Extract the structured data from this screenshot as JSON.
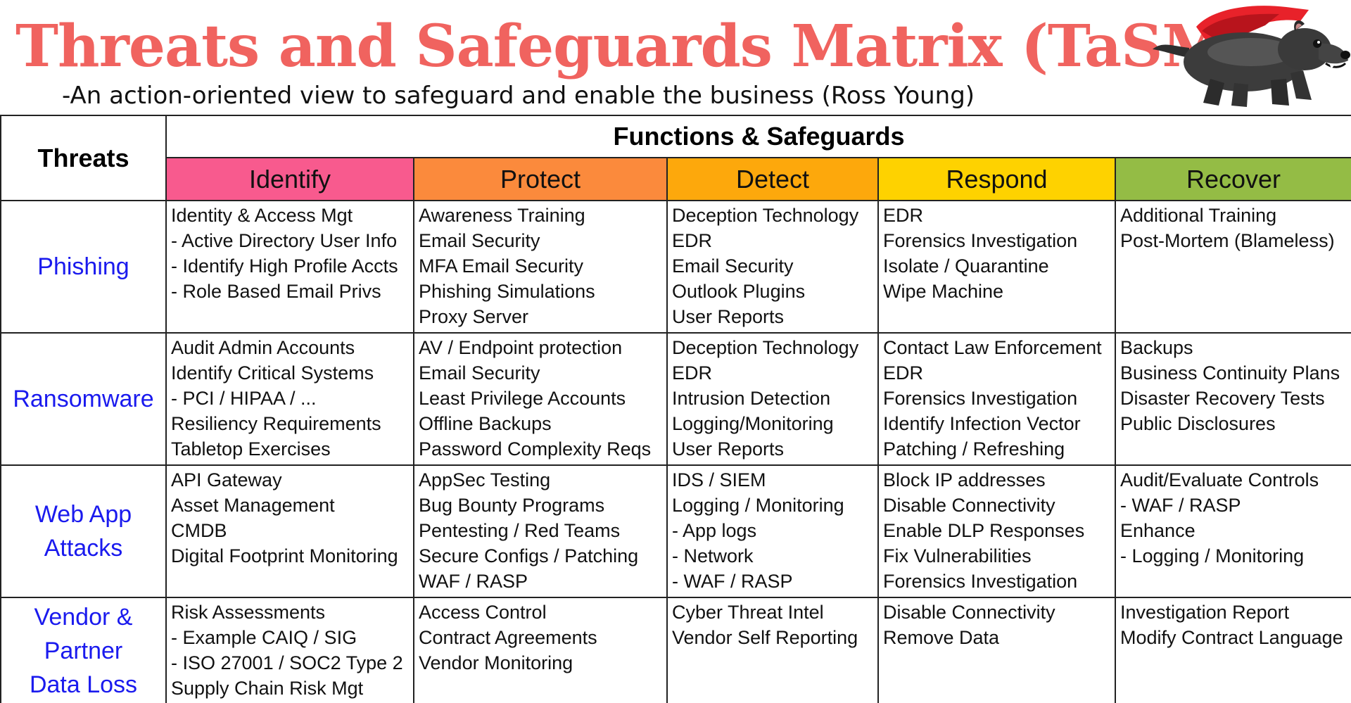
{
  "header": {
    "title": "Threats and Safeguards Matrix (TaSM)",
    "subtitle": "-An action-oriented view to safeguard and enable the business (Ross Young)"
  },
  "table": {
    "threats_header": "Threats",
    "functions_header": "Functions & Safeguards",
    "functions": [
      {
        "label": "Identify",
        "color": "#f85a8e"
      },
      {
        "label": "Protect",
        "color": "#fb8a3c"
      },
      {
        "label": "Detect",
        "color": "#fda80c"
      },
      {
        "label": "Respond",
        "color": "#fed200"
      },
      {
        "label": "Recover",
        "color": "#94bc45"
      }
    ],
    "rows": [
      {
        "threat": [
          "Phishing"
        ],
        "cells": [
          [
            "Identity & Access Mgt",
            "- Active Directory User Info",
            "- Identify High Profile Accts",
            "- Role Based Email Privs"
          ],
          [
            "Awareness Training",
            "Email Security",
            "MFA Email Security",
            "Phishing Simulations",
            "Proxy Server"
          ],
          [
            "Deception Technology",
            "EDR",
            "Email Security",
            "Outlook Plugins",
            "User Reports"
          ],
          [
            "EDR",
            "Forensics Investigation",
            "Isolate / Quarantine",
            "Wipe Machine"
          ],
          [
            "Additional Training",
            "Post-Mortem (Blameless)"
          ]
        ]
      },
      {
        "threat": [
          "Ransomware"
        ],
        "cells": [
          [
            "Audit Admin Accounts",
            "Identify Critical Systems",
            "- PCI / HIPAA / ...",
            "Resiliency Requirements",
            "Tabletop Exercises"
          ],
          [
            "AV / Endpoint protection",
            "Email Security",
            "Least Privilege Accounts",
            "Offline Backups",
            "Password Complexity Reqs"
          ],
          [
            "Deception Technology",
            "EDR",
            "Intrusion Detection",
            "Logging/Monitoring",
            "User Reports"
          ],
          [
            "Contact Law Enforcement",
            "EDR",
            "Forensics Investigation",
            "Identify Infection Vector",
            "Patching / Refreshing"
          ],
          [
            "Backups",
            "Business Continuity Plans",
            "Disaster Recovery Tests",
            "Public Disclosures"
          ]
        ]
      },
      {
        "threat": [
          "Web App",
          "Attacks"
        ],
        "cells": [
          [
            "API Gateway",
            "Asset Management",
            "CMDB",
            "Digital Footprint Monitoring"
          ],
          [
            "AppSec Testing",
            "Bug Bounty Programs",
            "Pentesting / Red Teams",
            "Secure Configs / Patching",
            "WAF / RASP"
          ],
          [
            "IDS / SIEM",
            "Logging / Monitoring",
            "- App logs",
            "- Network",
            "- WAF / RASP"
          ],
          [
            "Block IP addresses",
            "Disable Connectivity",
            "Enable DLP Responses",
            "Fix Vulnerabilities",
            "Forensics Investigation"
          ],
          [
            "Audit/Evaluate Controls",
            "- WAF / RASP",
            "Enhance",
            "- Logging / Monitoring"
          ]
        ]
      },
      {
        "threat": [
          "Vendor &",
          "Partner",
          "Data Loss"
        ],
        "cells": [
          [
            "Risk Assessments",
            "- Example CAIQ / SIG",
            "- ISO 27001 / SOC2 Type 2",
            "Supply Chain Risk Mgt"
          ],
          [
            "Access Control",
            "Contract Agreements",
            "Vendor Monitoring"
          ],
          [
            "Cyber Threat Intel",
            "Vendor Self Reporting"
          ],
          [
            "Disable Connectivity",
            "Remove Data"
          ],
          [
            "Investigation Report",
            "Modify Contract Language"
          ]
        ]
      }
    ]
  },
  "mascot": {
    "icon": "tasmanian-devil-mascot-icon",
    "cape_color": "#e8222a",
    "body_color": "#3a3a3a"
  }
}
